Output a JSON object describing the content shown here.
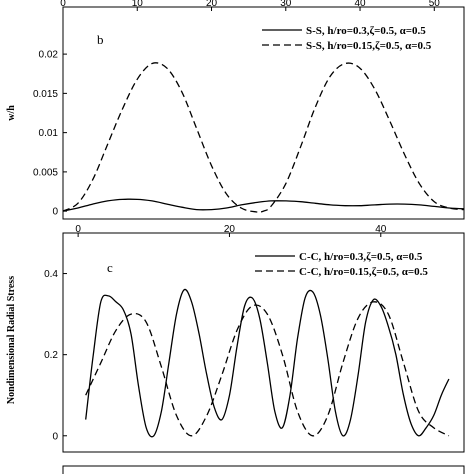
{
  "chart_data": [
    {
      "type": "line",
      "panel_label": "b",
      "ylabel": "w/h",
      "xlim": [
        0,
        54
      ],
      "ylim": [
        -0.001,
        0.026
      ],
      "x_ticks_top": [
        "0",
        "10",
        "20",
        "30",
        "40",
        "50"
      ],
      "x_tick_values_top": [
        0,
        10,
        20,
        30,
        40,
        50
      ],
      "y_ticks": [
        "0",
        "0.005",
        "0.01",
        "0.015",
        "0.02"
      ],
      "y_tick_values": [
        0,
        0.005,
        0.01,
        0.015,
        0.02
      ],
      "legend_position": "top-right",
      "series": [
        {
          "name": "S-S, h/ro=0.3,ζ=0.5, α=0.5",
          "style": "solid",
          "x": [
            0,
            2,
            4,
            6,
            8,
            10,
            12,
            14,
            16,
            18,
            20,
            22,
            24,
            26,
            28,
            30,
            32,
            34,
            36,
            38,
            40,
            42,
            44,
            46,
            48,
            50,
            52,
            54
          ],
          "y": [
            0,
            0.0004,
            0.0009,
            0.0013,
            0.0015,
            0.0015,
            0.0013,
            0.0009,
            0.0005,
            0.0002,
            0.0002,
            0.0004,
            0.0008,
            0.0011,
            0.0013,
            0.0013,
            0.0012,
            0.001,
            0.0008,
            0.0007,
            0.0007,
            0.0008,
            0.0009,
            0.0009,
            0.0008,
            0.0006,
            0.0004,
            0.0003
          ]
        },
        {
          "name": "S-S, h/ro=0.15,ζ=0.5, α=0.5",
          "style": "dashed",
          "x": [
            0,
            2,
            4,
            6,
            8,
            10,
            12,
            14,
            16,
            18,
            20,
            22,
            24,
            26,
            27,
            28,
            30,
            32,
            34,
            36,
            38,
            40,
            42,
            44,
            46,
            48,
            50,
            52,
            54
          ],
          "y": [
            0,
            0.001,
            0.004,
            0.0085,
            0.013,
            0.0168,
            0.0188,
            0.0182,
            0.0152,
            0.0105,
            0.0058,
            0.0022,
            0.0004,
            -0.0001,
            0,
            0.0006,
            0.0035,
            0.0082,
            0.0133,
            0.0172,
            0.0188,
            0.0182,
            0.0155,
            0.0115,
            0.0072,
            0.0035,
            0.0012,
            0.0004,
            0.0002
          ]
        }
      ]
    },
    {
      "type": "line",
      "panel_label": "c",
      "ylabel": "Nondimensional Radial Stress",
      "xlim": [
        -2,
        51
      ],
      "ylim": [
        -0.04,
        0.5
      ],
      "x_ticks_top": [
        "0",
        "20",
        "40"
      ],
      "x_tick_values_top": [
        0,
        20,
        40
      ],
      "y_ticks": [
        "0",
        "0.2",
        "0.4"
      ],
      "y_tick_values": [
        0,
        0.2,
        0.4
      ],
      "legend_position": "top-right",
      "series": [
        {
          "name": "C-C, h/ro=0.3,ζ=0.5, α=0.5",
          "style": "solid",
          "x": [
            1,
            2,
            3,
            4,
            5,
            6,
            7,
            8,
            9,
            10,
            11,
            12,
            13,
            14,
            15,
            16,
            17,
            18,
            19,
            20,
            21,
            22,
            23,
            24,
            25,
            26,
            27,
            28,
            29,
            30,
            31,
            32,
            33,
            34,
            35,
            36,
            37,
            38,
            39,
            40,
            41,
            42,
            43,
            44,
            45,
            46,
            47,
            48,
            49
          ],
          "y": [
            0.04,
            0.2,
            0.33,
            0.345,
            0.33,
            0.31,
            0.25,
            0.12,
            0.02,
            0.0,
            0.06,
            0.18,
            0.3,
            0.36,
            0.33,
            0.25,
            0.15,
            0.07,
            0.04,
            0.1,
            0.22,
            0.32,
            0.34,
            0.29,
            0.18,
            0.06,
            0.02,
            0.1,
            0.24,
            0.34,
            0.355,
            0.3,
            0.19,
            0.06,
            0.0,
            0.04,
            0.15,
            0.28,
            0.335,
            0.32,
            0.27,
            0.2,
            0.1,
            0.03,
            0.0,
            0.02,
            0.05,
            0.1,
            0.14
          ]
        },
        {
          "name": "C-C, h/ro=0.15,ζ=0.5, α=0.5",
          "style": "dashed",
          "x": [
            1,
            3,
            5,
            7,
            9,
            11,
            13,
            15,
            17,
            19,
            21,
            23,
            25,
            27,
            29,
            31,
            33,
            35,
            37,
            39,
            41,
            43,
            45,
            47,
            49
          ],
          "y": [
            0.1,
            0.18,
            0.26,
            0.3,
            0.28,
            0.17,
            0.05,
            0.0,
            0.05,
            0.15,
            0.26,
            0.32,
            0.3,
            0.2,
            0.06,
            0.0,
            0.05,
            0.18,
            0.29,
            0.33,
            0.3,
            0.18,
            0.06,
            0.02,
            0.0
          ]
        }
      ]
    }
  ]
}
